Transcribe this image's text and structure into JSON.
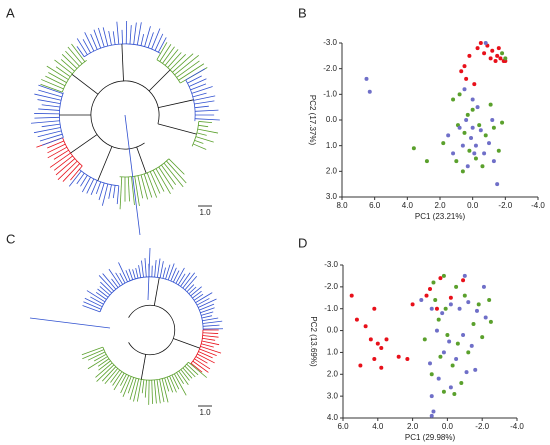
{
  "dendrograms": [
    {
      "panel": "A",
      "scale": "1.0"
    },
    {
      "panel": "C",
      "scale": "1.0"
    }
  ],
  "chart_data": [
    {
      "type": "scatter",
      "panel": "B",
      "xlabel": "PC1 (23.21%)",
      "ylabel": "PC2 (17.37%)",
      "xlim": [
        8,
        -4
      ],
      "ylim": [
        3,
        -3
      ],
      "xticks": [
        {
          "value": 8,
          "label": "8.0"
        },
        {
          "value": 6,
          "label": "6.0"
        },
        {
          "value": 4,
          "label": "4.0"
        },
        {
          "value": 2,
          "label": "2.0"
        },
        {
          "value": 0,
          "label": "0.0"
        },
        {
          "value": -2,
          "label": "-2.0"
        },
        {
          "value": -4,
          "label": "-4.0"
        }
      ],
      "yticks": [
        {
          "value": -3,
          "label": "-3.0"
        },
        {
          "value": -2,
          "label": "-2.0"
        },
        {
          "value": -1,
          "label": "-1.0"
        },
        {
          "value": 0,
          "label": "0.0"
        },
        {
          "value": 1,
          "label": "1.0"
        },
        {
          "value": 2,
          "label": "2.0"
        },
        {
          "value": 3,
          "label": "3.0"
        }
      ],
      "series": [
        {
          "color": "#e8101a",
          "x": [
            -0.5,
            -0.9,
            -1.2,
            -1.5,
            -1.7,
            -1.9,
            -1.4,
            -1.1,
            -0.7,
            -0.3,
            0.2,
            0.5,
            0.7,
            0.4,
            -0.1,
            -2.0,
            -1.6
          ],
          "values": [
            -3.0,
            -2.9,
            -2.7,
            -2.5,
            -2.4,
            -2.3,
            -2.3,
            -2.4,
            -2.6,
            -2.8,
            -2.5,
            -2.1,
            -1.9,
            -1.6,
            -1.4,
            -2.3,
            -2.8
          ]
        },
        {
          "color": "#5aa02c",
          "x": [
            -1.8,
            -2.0,
            3.6,
            2.8,
            1.8,
            1.2,
            0.8,
            0.0,
            -0.4,
            -0.8,
            -1.3,
            -1.8,
            0.5,
            0.2,
            -0.2,
            -0.6,
            1.0,
            0.6,
            -1.1,
            0.3,
            -1.6,
            0.9
          ],
          "values": [
            -2.6,
            -2.4,
            1.1,
            1.6,
            0.9,
            -0.8,
            -1.0,
            -0.4,
            0.2,
            0.6,
            0.3,
            0.1,
            0.5,
            1.2,
            1.5,
            1.8,
            1.6,
            2.0,
            -0.6,
            -0.2,
            1.2,
            0.2
          ]
        },
        {
          "color": "#6f6fc8",
          "x": [
            6.5,
            6.3,
            -0.8,
            0.5,
            0.0,
            -0.3,
            0.4,
            0.8,
            -0.5,
            -1.0,
            0.1,
            -0.2,
            0.6,
            1.2,
            -0.7,
            -1.3,
            0.3,
            -1.5,
            1.5,
            -1.2,
            0.0,
            -0.1
          ],
          "values": [
            -1.6,
            -1.1,
            -3.0,
            -1.2,
            -0.8,
            -0.5,
            0.0,
            0.3,
            0.4,
            0.9,
            0.7,
            1.0,
            1.0,
            1.3,
            1.3,
            1.6,
            1.8,
            2.5,
            0.6,
            0.0,
            0.3,
            1.3
          ]
        }
      ]
    },
    {
      "type": "scatter",
      "panel": "D",
      "xlabel": "PC1 (29.98%)",
      "ylabel": "PC2 (13.69%)",
      "xlim": [
        6,
        -4
      ],
      "ylim": [
        4,
        -3
      ],
      "xticks": [
        {
          "value": 6,
          "label": "6.0"
        },
        {
          "value": 4,
          "label": "4.0"
        },
        {
          "value": 2,
          "label": "2.0"
        },
        {
          "value": 0,
          "label": "0.0"
        },
        {
          "value": -2,
          "label": "-2.0"
        },
        {
          "value": -4,
          "label": "-4.0"
        }
      ],
      "yticks": [
        {
          "value": -3,
          "label": "-3.0"
        },
        {
          "value": -2,
          "label": "-2.0"
        },
        {
          "value": -1,
          "label": "-1.0"
        },
        {
          "value": 0,
          "label": "0.0"
        },
        {
          "value": 1,
          "label": "1.0"
        },
        {
          "value": 2,
          "label": "2.0"
        },
        {
          "value": 3,
          "label": "3.0"
        },
        {
          "value": 4,
          "label": "4.0"
        }
      ],
      "series": [
        {
          "color": "#e8101a",
          "x": [
            5.5,
            5.2,
            4.7,
            4.4,
            4.2,
            4.0,
            3.8,
            3.5,
            4.2,
            3.8,
            5.0,
            2.8,
            2.3,
            2.0,
            0.4,
            1.0,
            -0.2,
            0.6,
            1.2,
            -0.9
          ],
          "values": [
            -1.6,
            -0.5,
            -0.2,
            0.4,
            -1.0,
            0.6,
            0.8,
            0.4,
            1.3,
            1.7,
            1.6,
            1.2,
            1.3,
            -1.2,
            -2.4,
            -1.9,
            -1.5,
            -1.0,
            -1.6,
            -2.3
          ]
        },
        {
          "color": "#5aa02c",
          "x": [
            0.8,
            0.2,
            -0.5,
            -1.0,
            -1.8,
            -2.4,
            0.5,
            0.0,
            -0.6,
            -1.2,
            0.4,
            -0.3,
            0.9,
            0.2,
            -0.8,
            1.3,
            -2.0,
            -2.5,
            0.7,
            -1.5,
            0.1,
            -0.4
          ],
          "values": [
            -2.2,
            -2.5,
            -2.0,
            -1.6,
            -1.2,
            -1.4,
            -0.5,
            0.2,
            0.6,
            1.0,
            1.2,
            1.6,
            2.0,
            2.8,
            2.4,
            0.4,
            0.3,
            -0.4,
            -1.4,
            -0.3,
            -1.0,
            2.9
          ]
        },
        {
          "color": "#6f6fc8",
          "x": [
            1.5,
            0.9,
            0.3,
            -0.2,
            -0.7,
            -1.2,
            -1.7,
            -2.2,
            0.6,
            -0.1,
            -0.9,
            -1.4,
            0.2,
            -0.5,
            1.0,
            -1.1,
            0.5,
            -0.2,
            0.9,
            0.8,
            0.9,
            -1.0,
            -2.1,
            -1.6
          ],
          "values": [
            -1.4,
            -1.0,
            -0.8,
            -1.2,
            -1.0,
            -1.3,
            -0.9,
            -0.6,
            0.0,
            0.5,
            0.2,
            0.7,
            1.0,
            1.3,
            1.5,
            1.9,
            2.2,
            2.6,
            3.0,
            3.7,
            3.9,
            -2.5,
            -2.0,
            1.8
          ]
        }
      ]
    }
  ]
}
